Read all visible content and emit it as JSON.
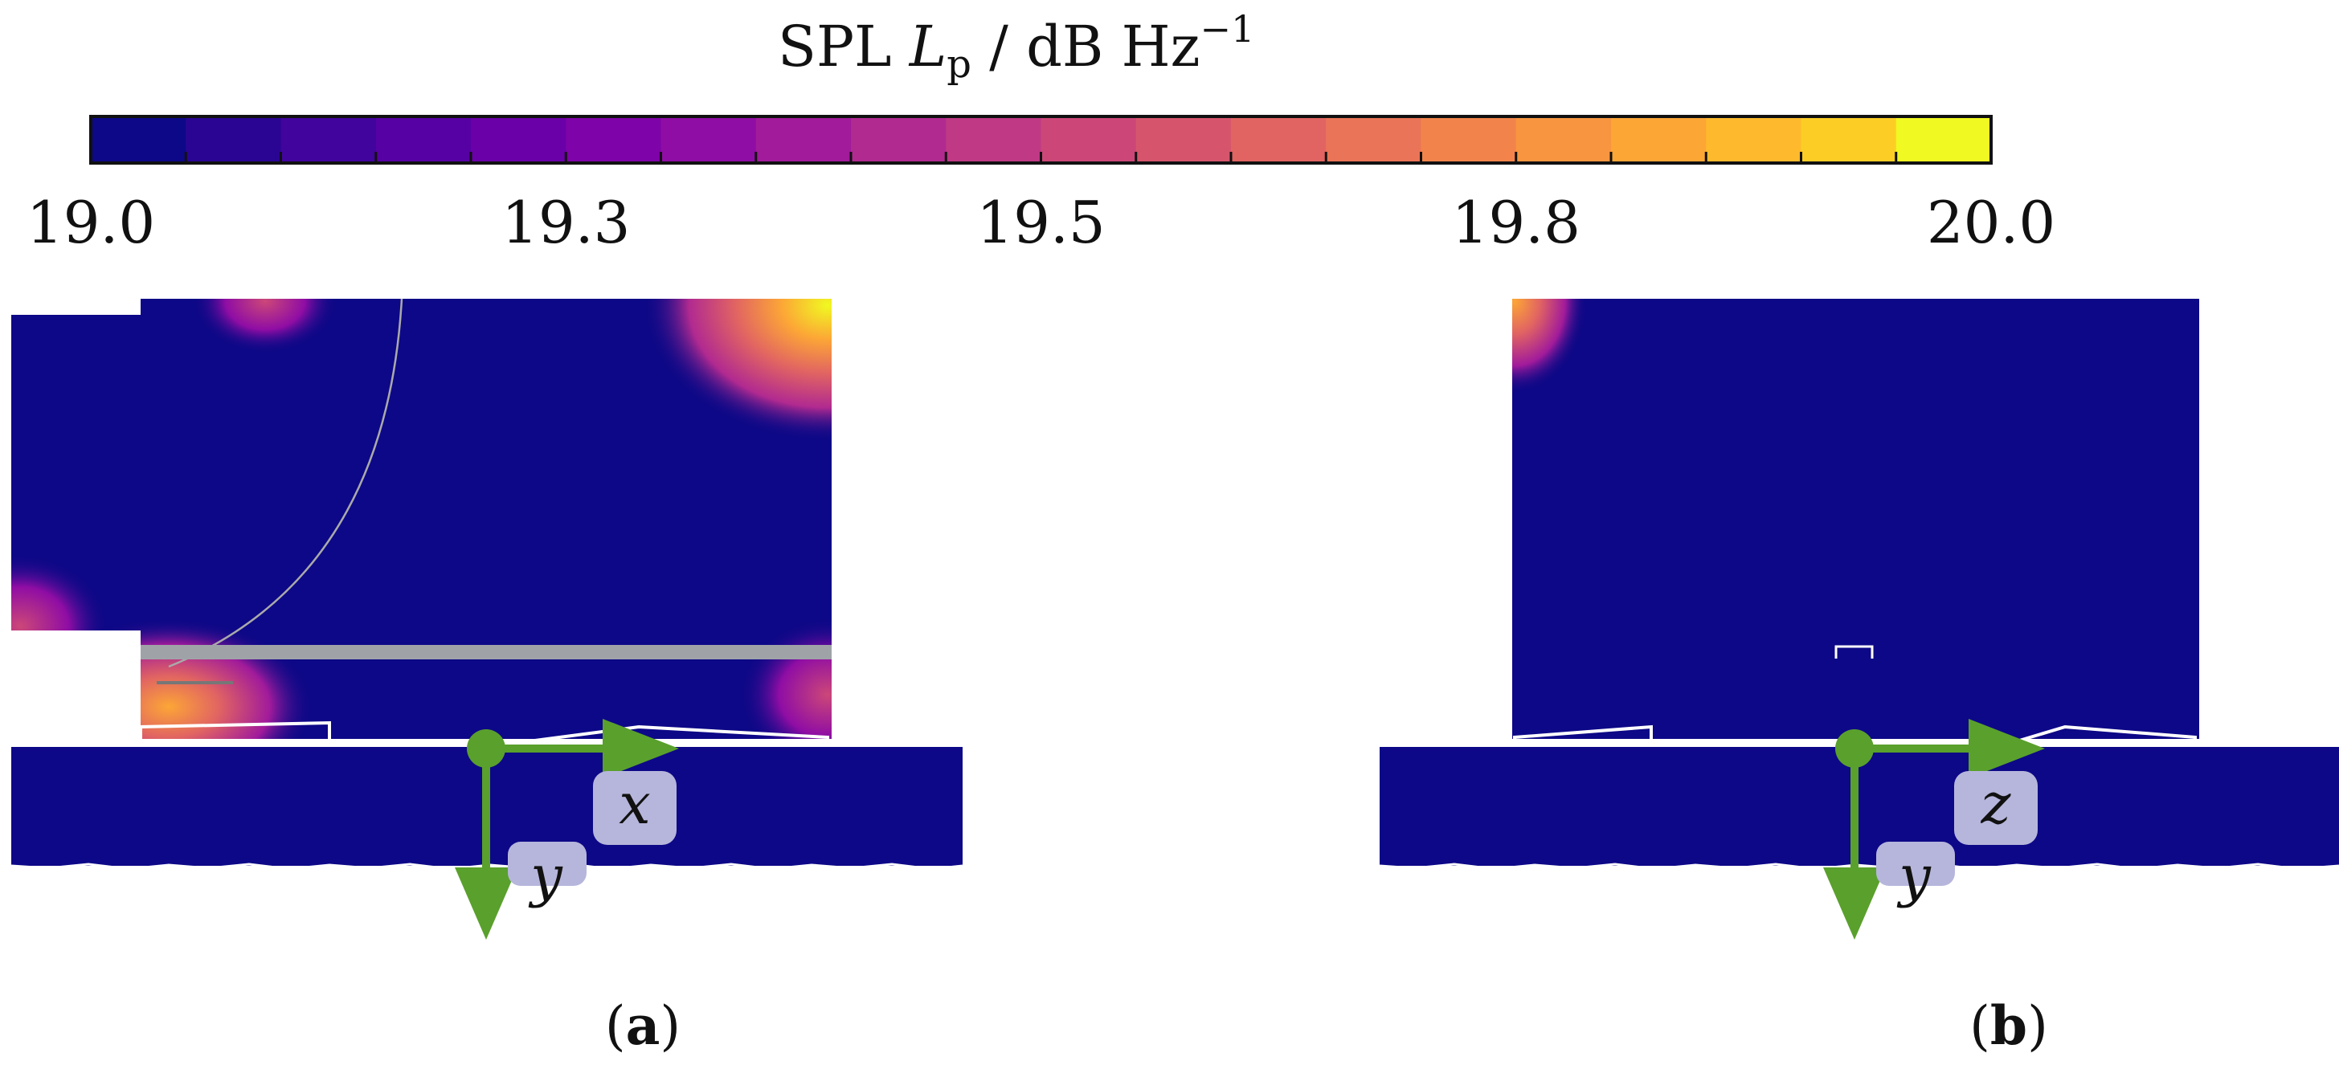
{
  "colorbar": {
    "title_main": "SPL ",
    "title_symbol": "L",
    "title_subscript": "p",
    "title_units": " / dB Hz",
    "title_exponent": "−1",
    "min": 19.0,
    "max": 20.0,
    "levels": 20,
    "ticks": [
      "19.0",
      "19.3",
      "19.5",
      "19.8",
      "20.0"
    ],
    "tick_values": [
      19.0,
      19.25,
      19.5,
      19.75,
      20.0
    ],
    "colors": [
      "#0d0887",
      "#2a0593",
      "#41049d",
      "#5601a4",
      "#6a00a8",
      "#7e03a8",
      "#8f0da4",
      "#a11b9b",
      "#b12a90",
      "#bf3984",
      "#cc4778",
      "#d6556d",
      "#e16462",
      "#ea7457",
      "#f2844b",
      "#f89540",
      "#fca636",
      "#feba2c",
      "#fcce25",
      "#f0f921"
    ]
  },
  "panels": [
    {
      "id": "a",
      "caption_open": "(",
      "caption_letter": "a",
      "caption_close": ")",
      "axis_h": "x",
      "axis_v": "y"
    },
    {
      "id": "b",
      "caption_open": "(",
      "caption_letter": "b",
      "caption_close": ")",
      "axis_h": "z",
      "axis_v": "y"
    }
  ],
  "style": {
    "field_color": "#0d0887",
    "axis_color": "#5aa02c",
    "label_bg": "#b6b6dc"
  }
}
